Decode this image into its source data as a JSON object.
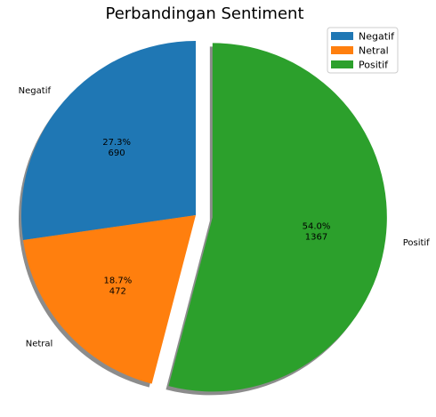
{
  "chart_data": {
    "type": "pie",
    "title": "Perbandingan Sentiment",
    "slices": [
      {
        "label": "Negatif",
        "value": 690,
        "percent_label": "27.3%",
        "color": "#1f77b4"
      },
      {
        "label": "Netral",
        "value": 472,
        "percent_label": "18.7%",
        "color": "#ff7f0e"
      },
      {
        "label": "Positif",
        "value": 1367,
        "percent_label": "54.0%",
        "color": "#2ca02c"
      }
    ],
    "exploded": [
      "Positif"
    ],
    "shadow": true,
    "legend_placement": "top-right"
  }
}
